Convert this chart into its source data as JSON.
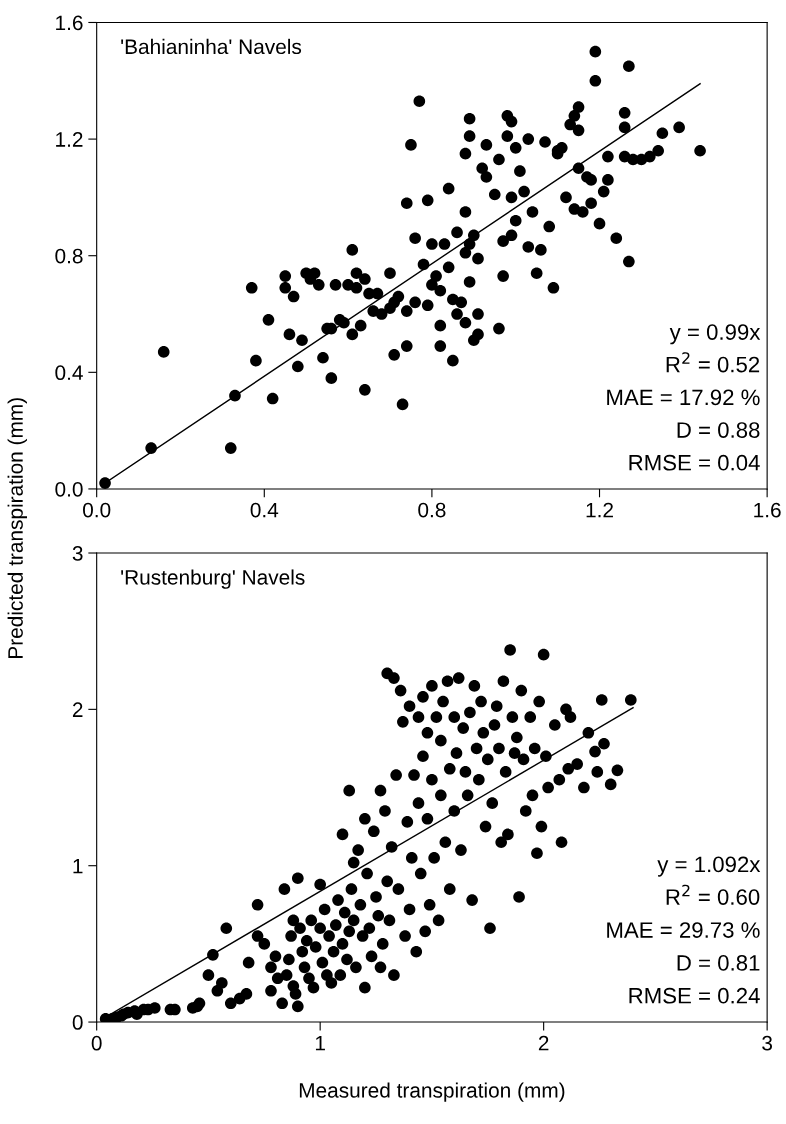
{
  "chart_data": [
    {
      "type": "scatter",
      "title": "'Bahianinha' Navels",
      "ylabel": "Predicted transpiration (mm)",
      "marker": "circle",
      "xlim": [
        0,
        1.6
      ],
      "xticks": [
        {
          "value": 0,
          "label": "0.0"
        },
        0.4,
        0.8,
        1.2,
        1.6
      ],
      "ylim": [
        0,
        1.6
      ],
      "yticks": [
        {
          "value": 0,
          "label": "0.0"
        },
        0.4,
        0.8,
        1.2,
        1.6
      ],
      "annotations": [
        "y = 0.99x",
        "R$^{2}$ = 0.52",
        "MAE = 17.92 %",
        "D = 0.88",
        "RMSE = 0.04"
      ],
      "series": [
        {
          "color": "#000000",
          "x": [
            0.02,
            0.13,
            0.16,
            0.32,
            0.33,
            0.37,
            0.38,
            0.41,
            0.42,
            0.45,
            0.45,
            0.46,
            0.47,
            0.48,
            0.49,
            0.5,
            0.51,
            0.52,
            0.53,
            0.54,
            0.55,
            0.56,
            0.56,
            0.57,
            0.58,
            0.59,
            0.6,
            0.61,
            0.61,
            0.62,
            0.62,
            0.63,
            0.64,
            0.64,
            0.65,
            0.66,
            0.67,
            0.68,
            0.7,
            0.7,
            0.71,
            0.71,
            0.72,
            0.73,
            0.74,
            0.74,
            0.74,
            0.75,
            0.76,
            0.76,
            0.77,
            0.78,
            0.79,
            0.79,
            0.8,
            0.8,
            0.81,
            0.82,
            0.82,
            0.82,
            0.83,
            0.84,
            0.84,
            0.85,
            0.85,
            0.86,
            0.86,
            0.87,
            0.88,
            0.88,
            0.88,
            0.88,
            0.89,
            0.89,
            0.89,
            0.89,
            0.9,
            0.9,
            0.91,
            0.91,
            0.91,
            0.92,
            0.93,
            0.93,
            0.95,
            0.96,
            0.96,
            0.97,
            0.97,
            0.98,
            0.98,
            0.99,
            0.99,
            0.99,
            1.0,
            1.0,
            1.01,
            1.02,
            1.03,
            1.03,
            1.04,
            1.05,
            1.06,
            1.07,
            1.08,
            1.09,
            1.1,
            1.1,
            1.12,
            1.13,
            1.14,
            1.15,
            1.14,
            1.16,
            1.15,
            1.17,
            1.18,
            1.18,
            1.19,
            1.19,
            1.2,
            1.21,
            1.22,
            1.22,
            1.24,
            1.26,
            1.26,
            1.26,
            1.27,
            1.27,
            1.28,
            1.3,
            1.32,
            1.34,
            1.35,
            1.39,
            1.44,
            1.15,
            1.11
          ],
          "values": [
            0.02,
            0.14,
            0.47,
            0.14,
            0.32,
            0.69,
            0.44,
            0.58,
            0.31,
            0.73,
            0.69,
            0.53,
            0.66,
            0.42,
            0.51,
            0.74,
            0.72,
            0.74,
            0.7,
            0.45,
            0.55,
            0.38,
            0.55,
            0.7,
            0.58,
            0.57,
            0.7,
            0.82,
            0.53,
            0.74,
            0.69,
            0.56,
            0.34,
            0.72,
            0.67,
            0.61,
            0.67,
            0.6,
            0.74,
            0.62,
            0.64,
            0.46,
            0.66,
            0.29,
            0.49,
            0.61,
            0.98,
            1.18,
            0.64,
            0.86,
            1.33,
            0.77,
            0.63,
            0.99,
            0.84,
            0.7,
            0.73,
            0.49,
            0.56,
            0.68,
            0.84,
            1.03,
            0.76,
            0.44,
            0.65,
            0.6,
            0.88,
            0.64,
            0.57,
            0.81,
            1.15,
            0.95,
            0.71,
            1.21,
            1.27,
            0.84,
            0.87,
            0.51,
            0.79,
            0.6,
            0.53,
            1.1,
            1.07,
            1.18,
            1.01,
            1.13,
            0.55,
            0.73,
            0.85,
            1.21,
            1.28,
            1.0,
            1.26,
            0.87,
            1.17,
            0.92,
            1.09,
            1.02,
            1.2,
            0.83,
            0.95,
            0.74,
            0.82,
            1.19,
            0.9,
            0.69,
            1.16,
            1.15,
            1.0,
            1.25,
            1.28,
            1.31,
            0.96,
            0.95,
            1.23,
            1.07,
            1.06,
            0.98,
            1.5,
            1.4,
            0.91,
            1.02,
            1.06,
            1.14,
            0.86,
            1.14,
            1.24,
            1.29,
            1.45,
            0.78,
            1.13,
            1.13,
            1.14,
            1.16,
            1.22,
            1.24,
            1.16,
            1.1,
            1.17
          ]
        },
        {
          "type": "line",
          "marker": "none",
          "color": "#000000",
          "x": [
            0.02,
            1.44
          ],
          "values": [
            0.02,
            1.39
          ]
        }
      ]
    },
    {
      "type": "scatter",
      "title": "'Rustenburg' Navels",
      "xlabel": "Measured transpiration (mm)",
      "marker": "circle",
      "xlim": [
        0,
        3
      ],
      "xticks": [
        0,
        1,
        2,
        3
      ],
      "ylim": [
        0,
        3
      ],
      "yticks": [
        0,
        1,
        2,
        3
      ],
      "annotations": [
        "y = 1.092x",
        "R$^{2}$ = 0.60",
        "MAE = 29.73 %",
        "D = 0.81",
        "RMSE = 0.24"
      ],
      "series": [
        {
          "color": "#000000",
          "x": [
            0.04,
            0.07,
            0.09,
            0.11,
            0.12,
            0.14,
            0.17,
            0.18,
            0.21,
            0.23,
            0.26,
            0.33,
            0.35,
            0.43,
            0.45,
            0.46,
            0.5,
            0.52,
            0.54,
            0.56,
            0.58,
            0.6,
            0.64,
            0.67,
            0.68,
            0.72,
            0.72,
            0.75,
            0.78,
            0.78,
            0.8,
            0.81,
            0.83,
            0.84,
            0.85,
            0.86,
            0.87,
            0.88,
            0.88,
            0.89,
            0.9,
            0.9,
            0.91,
            0.92,
            0.93,
            0.94,
            0.95,
            0.96,
            0.97,
            0.98,
            1.0,
            1.0,
            1.01,
            1.02,
            1.03,
            1.04,
            1.05,
            1.06,
            1.07,
            1.08,
            1.09,
            1.1,
            1.1,
            1.11,
            1.12,
            1.13,
            1.13,
            1.14,
            1.15,
            1.15,
            1.16,
            1.17,
            1.18,
            1.19,
            1.2,
            1.2,
            1.21,
            1.22,
            1.23,
            1.24,
            1.25,
            1.26,
            1.27,
            1.27,
            1.28,
            1.29,
            1.3,
            1.3,
            1.31,
            1.32,
            1.33,
            1.33,
            1.34,
            1.35,
            1.36,
            1.37,
            1.38,
            1.39,
            1.4,
            1.4,
            1.41,
            1.42,
            1.43,
            1.44,
            1.44,
            1.45,
            1.46,
            1.46,
            1.47,
            1.48,
            1.48,
            1.49,
            1.5,
            1.5,
            1.51,
            1.52,
            1.53,
            1.54,
            1.54,
            1.55,
            1.56,
            1.57,
            1.58,
            1.58,
            1.6,
            1.6,
            1.61,
            1.62,
            1.63,
            1.64,
            1.65,
            1.66,
            1.67,
            1.68,
            1.69,
            1.7,
            1.71,
            1.72,
            1.73,
            1.74,
            1.75,
            1.76,
            1.77,
            1.78,
            1.79,
            1.8,
            1.81,
            1.82,
            1.83,
            1.84,
            1.85,
            1.86,
            1.87,
            1.88,
            1.89,
            1.9,
            1.91,
            1.92,
            1.94,
            1.95,
            1.96,
            1.97,
            1.98,
            1.99,
            2.0,
            2.01,
            2.02,
            2.05,
            2.07,
            2.08,
            2.1,
            2.11,
            2.12,
            2.15,
            2.18,
            2.2,
            2.23,
            2.24,
            2.26,
            2.27,
            2.3,
            2.33,
            2.39
          ],
          "values": [
            0.02,
            0.02,
            0.03,
            0.04,
            0.05,
            0.06,
            0.07,
            0.05,
            0.08,
            0.08,
            0.09,
            0.08,
            0.08,
            0.09,
            0.1,
            0.12,
            0.3,
            0.43,
            0.2,
            0.25,
            0.6,
            0.12,
            0.15,
            0.18,
            0.38,
            0.75,
            0.55,
            0.5,
            0.2,
            0.35,
            0.42,
            0.28,
            0.12,
            0.85,
            0.3,
            0.4,
            0.55,
            0.65,
            0.23,
            0.18,
            0.1,
            0.92,
            0.6,
            0.45,
            0.35,
            0.52,
            0.28,
            0.65,
            0.22,
            0.48,
            0.88,
            0.6,
            0.38,
            0.72,
            0.3,
            0.55,
            0.25,
            0.45,
            0.62,
            0.78,
            0.3,
            1.2,
            0.5,
            0.7,
            0.4,
            1.48,
            0.58,
            0.85,
            1.02,
            0.65,
            0.35,
            1.1,
            0.75,
            0.55,
            0.22,
            1.3,
            0.95,
            0.6,
            0.42,
            1.22,
            0.8,
            0.68,
            1.48,
            0.35,
            0.5,
            1.35,
            0.9,
            2.23,
            0.65,
            1.12,
            2.2,
            0.3,
            1.58,
            0.85,
            2.12,
            1.92,
            0.55,
            1.28,
            2.02,
            0.72,
            1.05,
            1.58,
            0.45,
            1.95,
            1.4,
            0.95,
            2.08,
            1.7,
            0.58,
            1.85,
            1.3,
            0.75,
            2.15,
            1.55,
            1.05,
            1.95,
            0.65,
            1.8,
            1.45,
            2.05,
            1.15,
            2.18,
            1.62,
            0.85,
            1.95,
            1.35,
            1.72,
            2.2,
            1.1,
            1.88,
            1.6,
            1.45,
            1.98,
            0.78,
            2.15,
            1.75,
            1.55,
            2.05,
            1.85,
            1.25,
            1.68,
            0.6,
            1.4,
            1.9,
            2.02,
            1.75,
            1.15,
            2.18,
            1.6,
            1.2,
            2.38,
            1.95,
            1.72,
            1.82,
            0.8,
            2.12,
            1.68,
            1.35,
            1.95,
            1.45,
            1.75,
            1.08,
            2.05,
            1.25,
            2.35,
            1.7,
            1.5,
            1.9,
            1.55,
            1.15,
            2.0,
            1.62,
            1.95,
            1.65,
            1.5,
            1.85,
            1.73,
            1.6,
            2.06,
            1.78,
            1.52,
            1.61,
            2.06
          ]
        },
        {
          "type": "line",
          "marker": "none",
          "color": "#000000",
          "x": [
            0.05,
            2.4
          ],
          "values": [
            0.04,
            2.01
          ]
        }
      ]
    }
  ]
}
